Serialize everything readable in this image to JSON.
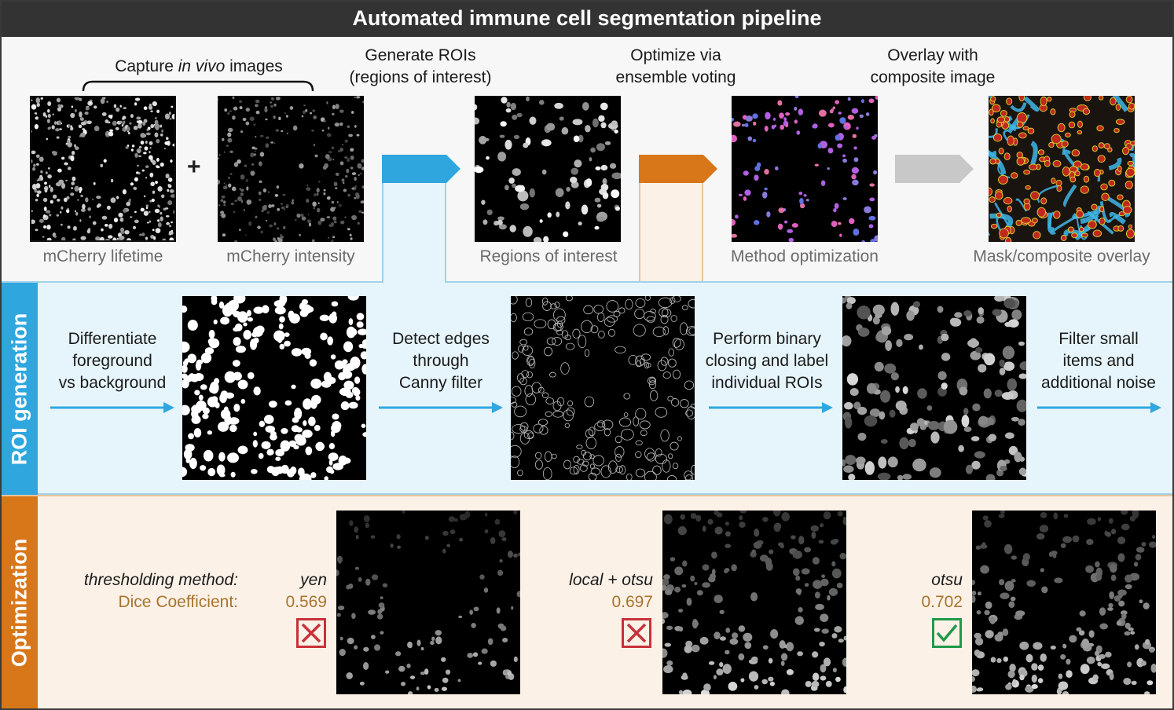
{
  "title": "Automated immune cell segmentation pipeline",
  "colors": {
    "blue": "#2fa7de",
    "orange": "#d8771a",
    "gray": "#c8c8c8",
    "red": "#c7323a",
    "green": "#1f9a4a",
    "dice": "#a8742f"
  },
  "top": {
    "capture_prefix": "Capture ",
    "capture_italic": "in vivo",
    "capture_suffix": " images",
    "plus": "+",
    "generate_line1": "Generate ROIs",
    "generate_line2": "(regions of interest)",
    "optimize_line1": "Optimize via",
    "optimize_line2": "ensemble voting",
    "overlay_line1": "Overlay with",
    "overlay_line2": "composite image",
    "captions": [
      "mCherry lifetime",
      "mCherry intensity",
      "Regions of interest",
      "Method optimization",
      "Mask/composite overlay"
    ]
  },
  "roi": {
    "tab": "ROI generation",
    "step1": [
      "Differentiate",
      "foreground",
      "vs background"
    ],
    "step2": [
      "Detect edges",
      "through",
      "Canny filter"
    ],
    "step3": [
      "Perform binary",
      "closing and label",
      "individual ROIs"
    ],
    "step4": [
      "Filter small",
      "items and",
      "additional noise"
    ]
  },
  "opt": {
    "tab": "Optimization",
    "method_label": "thresholding method:",
    "dice_label": "Dice Coefficient:",
    "methods": [
      {
        "name": "yen",
        "dice": "0.569",
        "status": "rejected"
      },
      {
        "name": "local + otsu",
        "dice": "0.697",
        "status": "rejected"
      },
      {
        "name": "otsu",
        "dice": "0.702",
        "status": "accepted"
      }
    ]
  }
}
